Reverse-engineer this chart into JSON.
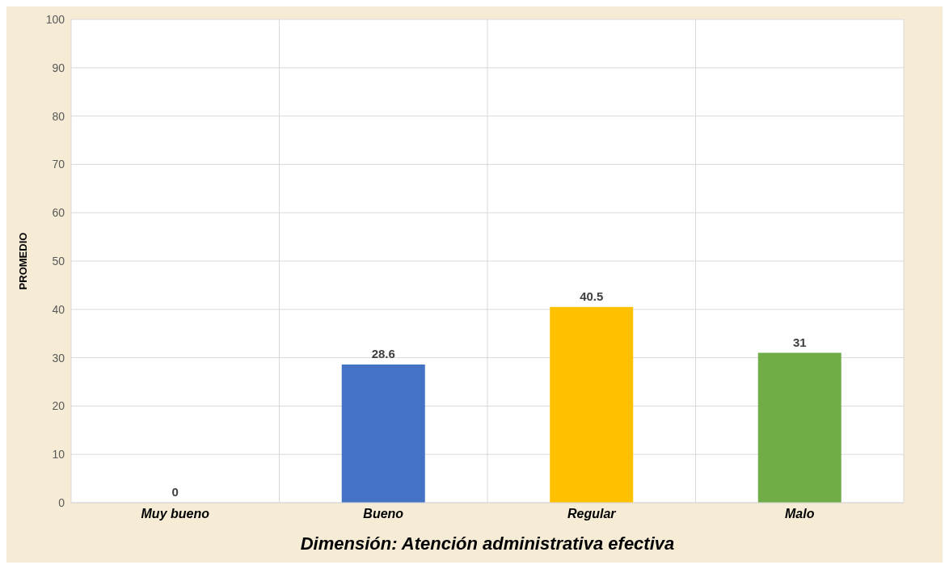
{
  "chart_data": {
    "type": "bar",
    "xlabel": "Dimensión: Atención administrativa efectiva",
    "ylabel": "PROMEDIO",
    "categories": [
      "Muy bueno",
      "Bueno",
      "Regular",
      "Malo"
    ],
    "values": [
      0,
      28.6,
      40.5,
      31
    ],
    "colors": [
      "#4472c4",
      "#4472c4",
      "#ffc000",
      "#70ad47"
    ],
    "ylim": [
      0,
      100
    ],
    "yticks": [
      0,
      10,
      20,
      30,
      40,
      50,
      60,
      70,
      80,
      90,
      100
    ],
    "grid": true,
    "data_labels": true
  }
}
